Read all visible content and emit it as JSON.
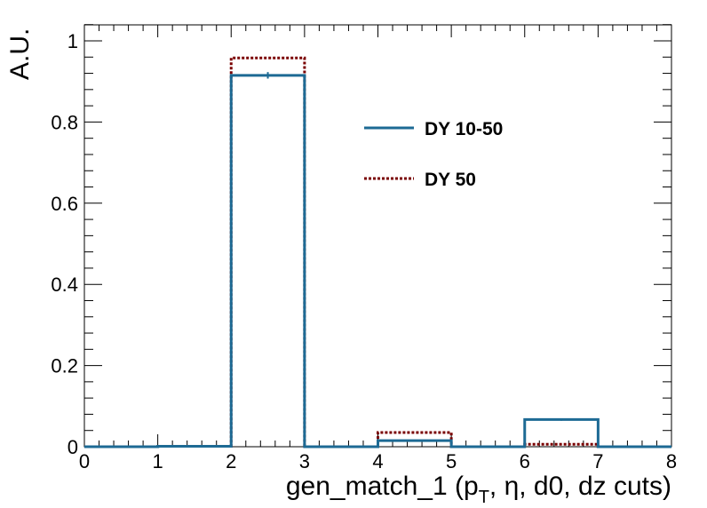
{
  "chart_data": {
    "type": "histogram",
    "title": "",
    "xlabel": {
      "main": "gen_match_1 (p",
      "sub": "T",
      "rest": ", η, d0, dz cuts)"
    },
    "ylabel": "A.U.",
    "xlim": [
      0,
      8
    ],
    "ylim": [
      0,
      1.0
    ],
    "bin_edges": [
      0,
      1,
      2,
      3,
      4,
      5,
      6,
      7,
      8
    ],
    "x_ticks": [
      "0",
      "1",
      "2",
      "3",
      "4",
      "5",
      "6",
      "7",
      "8"
    ],
    "y_ticks": [
      {
        "value": 0,
        "label": "0"
      },
      {
        "value": 0.2,
        "label": "0.2"
      },
      {
        "value": 0.4,
        "label": "0.4"
      },
      {
        "value": 0.6,
        "label": "0.6"
      },
      {
        "value": 0.8,
        "label": "0.8"
      },
      {
        "value": 1.0,
        "label": "1"
      }
    ],
    "series": [
      {
        "name": "DY 10-50",
        "color": "#1d6a94",
        "style": "solid",
        "values": [
          0,
          0.001,
          0.915,
          0,
          0.015,
          0,
          0.067,
          0
        ],
        "errors": [
          0,
          0,
          0.008,
          0,
          0,
          0,
          0.003,
          0
        ]
      },
      {
        "name": "DY 50",
        "color": "#7a0000",
        "style": "dotted",
        "values": [
          0,
          0.001,
          0.958,
          0,
          0.035,
          0,
          0.006,
          0
        ],
        "errors": [
          0,
          0,
          0,
          0,
          0,
          0,
          0,
          0
        ]
      }
    ],
    "legend_position": "upper-right inside",
    "grid": false
  }
}
